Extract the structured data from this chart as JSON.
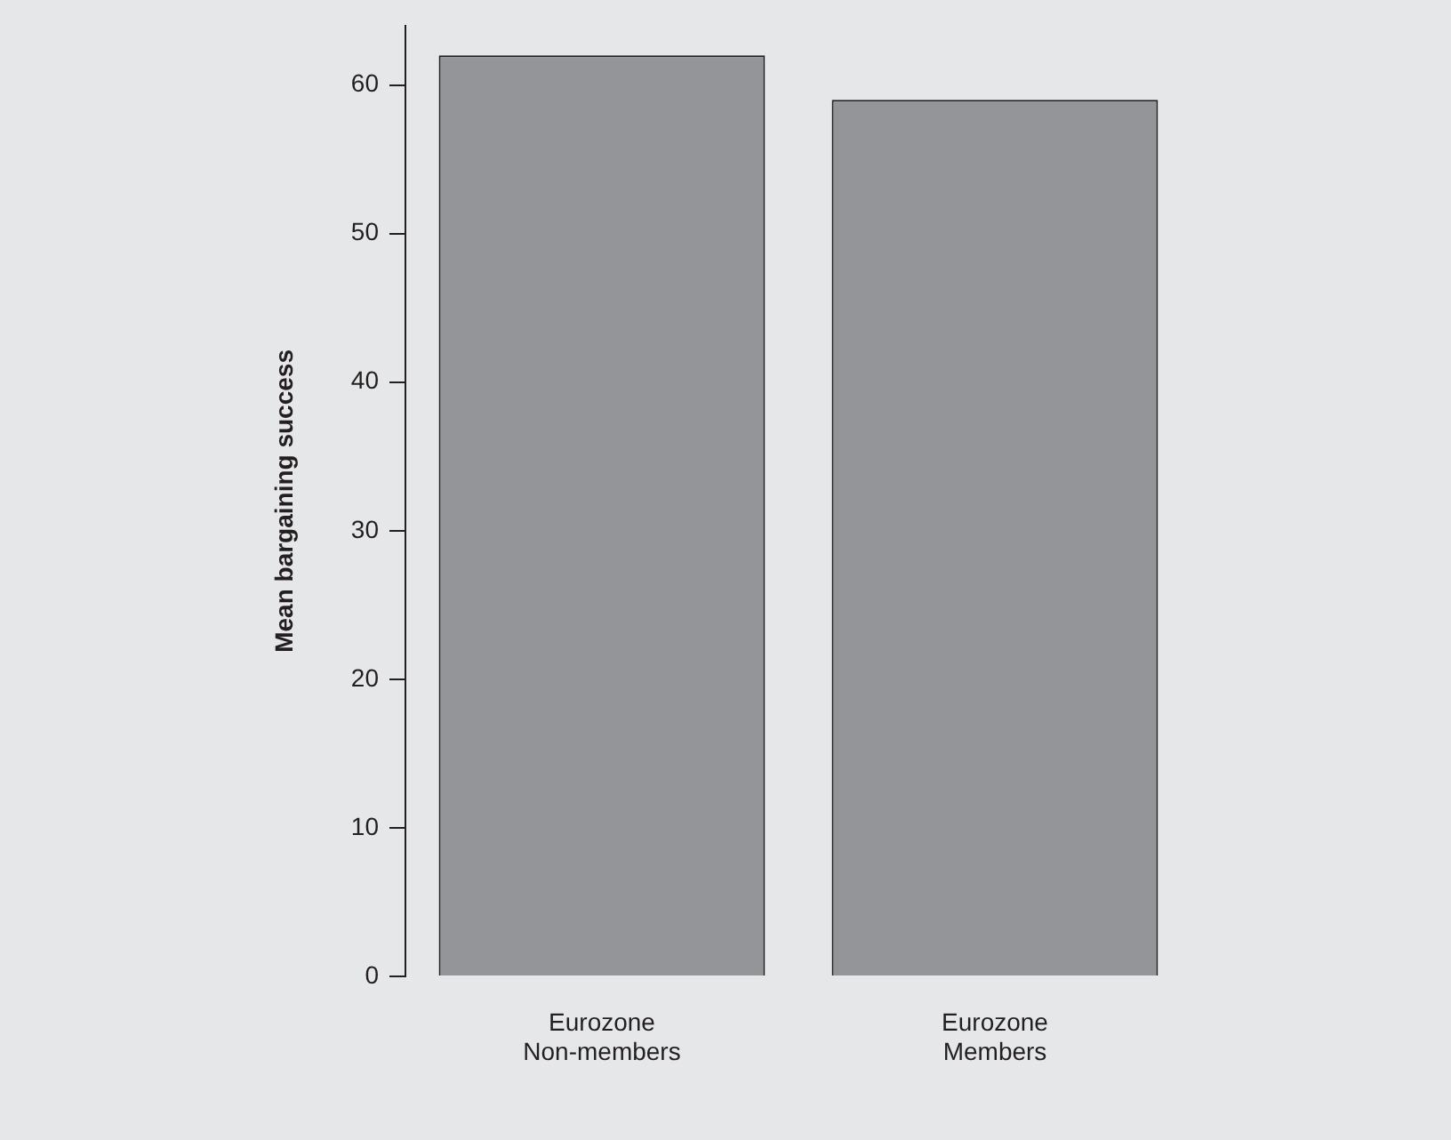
{
  "chart_data": {
    "type": "bar",
    "ylabel": "Mean bargaining success",
    "categories": [
      "Eurozone Non-members",
      "Eurozone Members"
    ],
    "values": [
      62,
      59
    ],
    "color": "#939598",
    "ylim": [
      0,
      64
    ],
    "yticks": [
      0,
      10,
      20,
      30,
      40,
      50,
      60
    ]
  }
}
